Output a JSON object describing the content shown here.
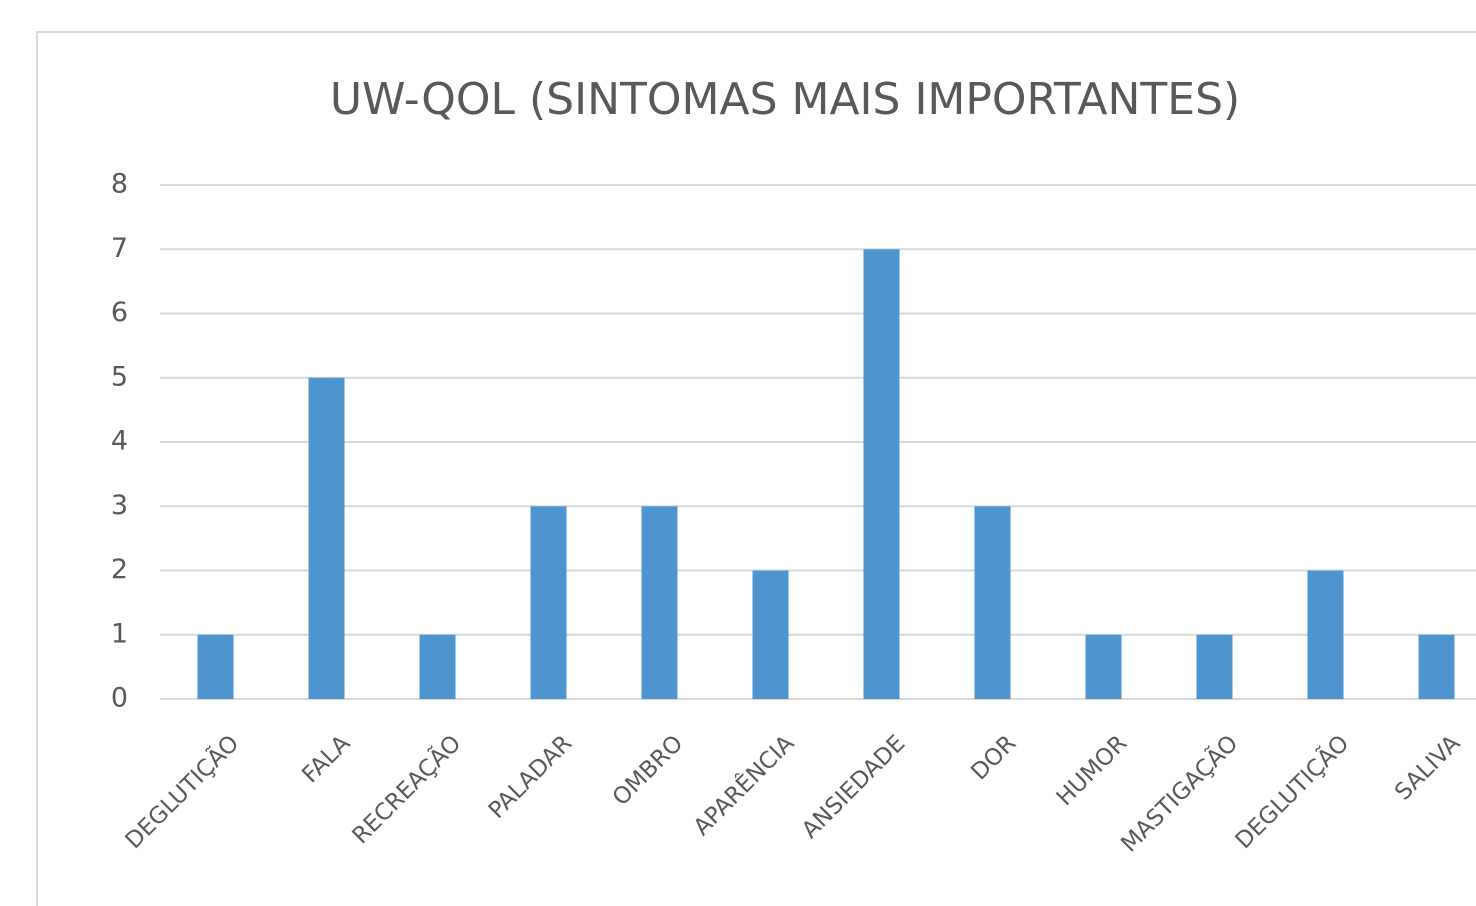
{
  "chart_data": {
    "type": "bar",
    "title": "UW-QOL (SINTOMAS MAIS IMPORTANTES)",
    "categories": [
      "DEGLUTIÇÃO",
      "FALA",
      "RECREAÇÃO",
      "PALADAR",
      "OMBRO",
      "APARÊNCIA",
      "ANSIEDADE",
      "DOR",
      "HUMOR",
      "MASTIGAÇÃO",
      "DEGLUTIÇÃO",
      "SALIVA"
    ],
    "values": [
      1,
      5,
      1,
      3,
      3,
      2,
      7,
      3,
      1,
      1,
      2,
      1
    ],
    "color": "#4e95d0",
    "ylim": [
      0,
      8
    ],
    "yticks": [
      0,
      1,
      2,
      3,
      4,
      5,
      6,
      7,
      8
    ],
    "grid": true
  }
}
